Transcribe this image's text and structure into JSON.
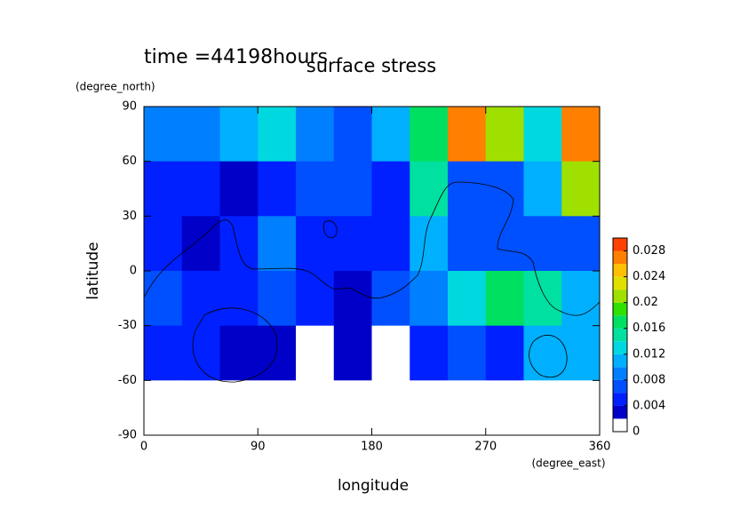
{
  "chart_data": {
    "type": "contour",
    "title": "surface stress",
    "annotation": "time =44198hours",
    "x_label": "longitude",
    "x_unit": "(degree_east)",
    "y_label": "latitude",
    "y_unit": "(degree_north)",
    "xlim": [
      0,
      360
    ],
    "ylim": [
      -90,
      90
    ],
    "xticks": [
      0,
      90,
      180,
      270,
      360
    ],
    "yticks": [
      -90,
      -60,
      -30,
      0,
      30,
      60,
      90
    ],
    "x": [
      15,
      45,
      75,
      105,
      135,
      165,
      195,
      225,
      255,
      285,
      315,
      345
    ],
    "y": [
      75,
      45,
      15,
      -15,
      -45,
      -75
    ],
    "z": [
      [
        0.008,
        0.008,
        0.01,
        0.012,
        0.008,
        0.006,
        0.01,
        0.016,
        0.026,
        0.02,
        0.012,
        0.026
      ],
      [
        0.004,
        0.004,
        0.002,
        0.004,
        0.006,
        0.006,
        0.004,
        0.014,
        0.006,
        0.006,
        0.01,
        0.02
      ],
      [
        0.004,
        0.002,
        0.004,
        0.008,
        0.004,
        0.004,
        0.004,
        0.01,
        0.006,
        0.006,
        0.006,
        0.006
      ],
      [
        0.006,
        0.004,
        0.004,
        0.006,
        0.004,
        0.002,
        0.006,
        0.008,
        0.012,
        0.016,
        0.014,
        0.01
      ],
      [
        0.004,
        0.004,
        0.002,
        0.002,
        0,
        0.002,
        0,
        0.004,
        0.006,
        0.004,
        0.01,
        0.01
      ],
      [
        0,
        0,
        0,
        0,
        0,
        0,
        0,
        0,
        0,
        0,
        0,
        0
      ]
    ],
    "colorbar": {
      "lim": [
        0,
        0.03
      ],
      "levels": [
        0,
        0.002,
        0.004,
        0.006,
        0.008,
        0.01,
        0.012,
        0.014,
        0.016,
        0.018,
        0.02,
        0.022,
        0.024,
        0.026,
        0.028,
        0.03
      ],
      "colors": [
        "#ffffff",
        "#0000c8",
        "#0020ff",
        "#0050ff",
        "#0080ff",
        "#00b0ff",
        "#00d8e0",
        "#00e0a0",
        "#00e060",
        "#30e000",
        "#a0e000",
        "#e0e000",
        "#ffc000",
        "#ff8000",
        "#ff4000"
      ],
      "ticks": [
        0,
        0.004,
        0.008,
        0.012,
        0.016,
        0.02,
        0.024,
        0.028
      ]
    }
  }
}
